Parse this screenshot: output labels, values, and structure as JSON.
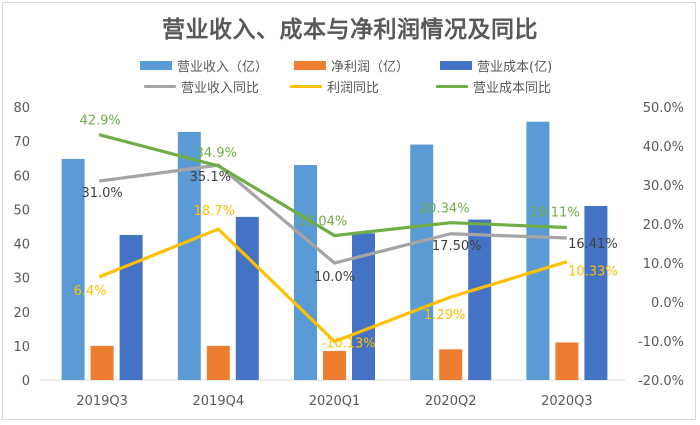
{
  "chart_data": {
    "type": "bar",
    "title": "营业收入、成本与净利润情况及同比",
    "categories": [
      "2019Q3",
      "2019Q4",
      "2020Q1",
      "2020Q2",
      "2020Q3"
    ],
    "series": [
      {
        "name": "营业收入（亿）",
        "kind": "bar",
        "axis": "left",
        "color": "#5b9bd5",
        "values": [
          64.8,
          72.7,
          63.0,
          69.0,
          75.7
        ]
      },
      {
        "name": "净利润（亿）",
        "kind": "bar",
        "axis": "left",
        "color": "#ed7d31",
        "values": [
          10.0,
          10.0,
          8.5,
          9.0,
          11.0
        ]
      },
      {
        "name": "营业成本(亿)",
        "kind": "bar",
        "axis": "left",
        "color": "#4472c4",
        "values": [
          42.5,
          47.8,
          43.0,
          47.0,
          51.0
        ]
      },
      {
        "name": "营业收入同比",
        "kind": "line",
        "axis": "right",
        "color": "#a5a5a5",
        "values": [
          31.0,
          35.1,
          10.0,
          17.5,
          16.41
        ],
        "labels": [
          "31.0%",
          "35.1%",
          "10.0%",
          "17.50%",
          "16.41%"
        ],
        "label_color": "#404040"
      },
      {
        "name": "利润同比",
        "kind": "line",
        "axis": "right",
        "color": "#ffc000",
        "values": [
          6.4,
          18.7,
          -10.13,
          1.29,
          10.33
        ],
        "labels": [
          "6.4%",
          "18.7%",
          "-10.13%",
          "1.29%",
          "10.33%"
        ],
        "label_color": "#ffc000"
      },
      {
        "name": "营业成本同比",
        "kind": "line",
        "axis": "right",
        "color": "#70ad47",
        "values": [
          42.9,
          34.9,
          17.04,
          20.34,
          19.11
        ],
        "labels": [
          "42.9%",
          "34.9%",
          "17.04%",
          "20.34%",
          "19.11%"
        ],
        "label_color": "#70ad47"
      }
    ],
    "left_axis": {
      "ylim": [
        0,
        80
      ],
      "ticks": [
        "0",
        "10",
        "20",
        "30",
        "40",
        "50",
        "60",
        "70",
        "80"
      ]
    },
    "right_axis": {
      "ylim": [
        -20,
        50
      ],
      "ticks": [
        "-20.0%",
        "-10.0%",
        "0.0%",
        "10.0%",
        "20.0%",
        "30.0%",
        "40.0%",
        "50.0%"
      ]
    },
    "xlabel": "",
    "ylabel": "",
    "grid": false,
    "legend": "top"
  }
}
